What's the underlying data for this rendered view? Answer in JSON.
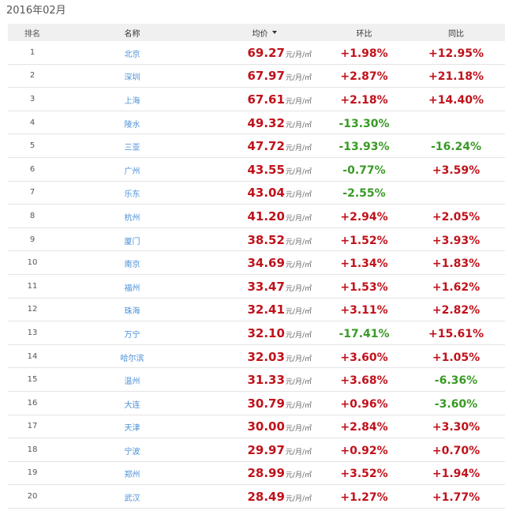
{
  "period": "2016年02月",
  "colors": {
    "up": "#c0121b",
    "down": "#3a9a26",
    "link": "#4a90d9",
    "header_bg": "#f0f0f0"
  },
  "headers": {
    "rank": "排名",
    "name": "名称",
    "price": "均价",
    "mom": "环比",
    "yoy": "同比"
  },
  "sort_icon": "sort-desc-icon",
  "unit": "元/月/㎡",
  "rows": [
    {
      "rank": "1",
      "name": "北京",
      "price": "69.27",
      "mom": "+1.98%",
      "yoy": "+12.95%"
    },
    {
      "rank": "2",
      "name": "深圳",
      "price": "67.97",
      "mom": "+2.87%",
      "yoy": "+21.18%"
    },
    {
      "rank": "3",
      "name": "上海",
      "price": "67.61",
      "mom": "+2.18%",
      "yoy": "+14.40%"
    },
    {
      "rank": "4",
      "name": "陵水",
      "price": "49.32",
      "mom": "-13.30%",
      "yoy": ""
    },
    {
      "rank": "5",
      "name": "三亚",
      "price": "47.72",
      "mom": "-13.93%",
      "yoy": "-16.24%"
    },
    {
      "rank": "6",
      "name": "广州",
      "price": "43.55",
      "mom": "-0.77%",
      "yoy": "+3.59%"
    },
    {
      "rank": "7",
      "name": "乐东",
      "price": "43.04",
      "mom": "-2.55%",
      "yoy": ""
    },
    {
      "rank": "8",
      "name": "杭州",
      "price": "41.20",
      "mom": "+2.94%",
      "yoy": "+2.05%"
    },
    {
      "rank": "9",
      "name": "厦门",
      "price": "38.52",
      "mom": "+1.52%",
      "yoy": "+3.93%"
    },
    {
      "rank": "10",
      "name": "南京",
      "price": "34.69",
      "mom": "+1.34%",
      "yoy": "+1.83%"
    },
    {
      "rank": "11",
      "name": "福州",
      "price": "33.47",
      "mom": "+1.53%",
      "yoy": "+1.62%"
    },
    {
      "rank": "12",
      "name": "珠海",
      "price": "32.41",
      "mom": "+3.11%",
      "yoy": "+2.82%"
    },
    {
      "rank": "13",
      "name": "万宁",
      "price": "32.10",
      "mom": "-17.41%",
      "yoy": "+15.61%"
    },
    {
      "rank": "14",
      "name": "哈尔滨",
      "price": "32.03",
      "mom": "+3.60%",
      "yoy": "+1.05%"
    },
    {
      "rank": "15",
      "name": "温州",
      "price": "31.33",
      "mom": "+3.68%",
      "yoy": "-6.36%"
    },
    {
      "rank": "16",
      "name": "大连",
      "price": "30.79",
      "mom": "+0.96%",
      "yoy": "-3.60%"
    },
    {
      "rank": "17",
      "name": "天津",
      "price": "30.00",
      "mom": "+2.84%",
      "yoy": "+3.30%"
    },
    {
      "rank": "18",
      "name": "宁波",
      "price": "29.97",
      "mom": "+0.92%",
      "yoy": "+0.70%"
    },
    {
      "rank": "19",
      "name": "郑州",
      "price": "28.99",
      "mom": "+3.52%",
      "yoy": "+1.94%"
    },
    {
      "rank": "20",
      "name": "武汉",
      "price": "28.49",
      "mom": "+1.27%",
      "yoy": "+1.77%"
    }
  ]
}
